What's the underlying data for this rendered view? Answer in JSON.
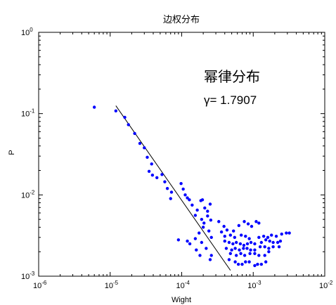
{
  "chart_data": {
    "type": "scatter",
    "title": "边权分布",
    "xlabel": "Wight",
    "ylabel": "P",
    "xscale": "log",
    "yscale": "log",
    "xlim": [
      1e-06,
      0.01
    ],
    "ylim": [
      0.001,
      1
    ],
    "x_ticks": [
      {
        "value": 1e-06,
        "base": "10",
        "exp": "-6"
      },
      {
        "value": 1e-05,
        "base": "10",
        "exp": "-5"
      },
      {
        "value": 0.0001,
        "base": "10",
        "exp": "-4"
      },
      {
        "value": 0.001,
        "base": "10",
        "exp": "-3"
      },
      {
        "value": 0.01,
        "base": "10",
        "exp": "-2"
      }
    ],
    "y_ticks": [
      {
        "value": 0.001,
        "base": "10",
        "exp": "-3"
      },
      {
        "value": 0.01,
        "base": "10",
        "exp": "-2"
      },
      {
        "value": 0.1,
        "base": "10",
        "exp": "-1"
      },
      {
        "value": 1,
        "base": "10",
        "exp": "0"
      }
    ],
    "grid": false,
    "annotation": {
      "line1": "幂律分布",
      "line2": "γ= 1.7907"
    },
    "marker_color": "#0000ff",
    "fit_line_color": "#000000",
    "fit_line": {
      "x": [
        1.2e-05,
        0.00048
      ],
      "y": [
        0.125,
        0.00118
      ]
    },
    "points": [
      [
        6e-06,
        0.12
      ],
      [
        1.2e-05,
        0.108
      ],
      [
        1.6e-05,
        0.09
      ],
      [
        1.8e-05,
        0.073
      ],
      [
        2.2e-05,
        0.057
      ],
      [
        2.6e-05,
        0.043
      ],
      [
        3e-05,
        0.038
      ],
      [
        3.3e-05,
        0.029
      ],
      [
        3.8e-05,
        0.024
      ],
      [
        3.5e-05,
        0.0195
      ],
      [
        3.9e-05,
        0.0175
      ],
      [
        4.5e-05,
        0.0163
      ],
      [
        5.3e-05,
        0.0178
      ],
      [
        5.8e-05,
        0.0145
      ],
      [
        6.3e-05,
        0.012
      ],
      [
        7.2e-05,
        0.0108
      ],
      [
        7e-05,
        0.009
      ],
      [
        9.8e-05,
        0.0138
      ],
      [
        0.000105,
        0.0118
      ],
      [
        0.000112,
        0.01
      ],
      [
        0.00012,
        0.0092
      ],
      [
        0.000128,
        0.0087
      ],
      [
        0.00014,
        0.0075
      ],
      [
        0.000165,
        0.0065
      ],
      [
        0.000185,
        0.0085
      ],
      [
        0.000195,
        0.0087
      ],
      [
        0.00021,
        0.0069
      ],
      [
        0.00023,
        0.0063
      ],
      [
        0.00025,
        0.0077
      ],
      [
        0.000155,
        0.0056
      ],
      [
        0.00019,
        0.005
      ],
      [
        0.000205,
        0.0045
      ],
      [
        0.00023,
        0.0055
      ],
      [
        0.000255,
        0.0049
      ],
      [
        0.0002,
        0.004
      ],
      [
        0.00024,
        0.0036
      ],
      [
        0.000175,
        0.0034
      ],
      [
        0.00026,
        0.003
      ],
      [
        0.00012,
        0.0027
      ],
      [
        0.000155,
        0.0029
      ],
      [
        0.00019,
        0.0026
      ],
      [
        0.00013,
        0.0025
      ],
      [
        9e-05,
        0.0028
      ],
      [
        0.00016,
        0.0021
      ],
      [
        0.00022,
        0.0022
      ],
      [
        0.00026,
        0.0018
      ],
      [
        0.00018,
        0.0018
      ],
      [
        0.00025,
        0.0016
      ],
      [
        0.00033,
        0.0047
      ],
      [
        0.00039,
        0.0041
      ],
      [
        0.00043,
        0.0037
      ],
      [
        0.00053,
        0.0036
      ],
      [
        0.00036,
        0.0035
      ],
      [
        0.0004,
        0.0031
      ],
      [
        0.00048,
        0.0032
      ],
      [
        0.00055,
        0.003
      ],
      [
        0.00063,
        0.0042
      ],
      [
        0.00075,
        0.0047
      ],
      [
        0.00085,
        0.0044
      ],
      [
        0.00095,
        0.0041
      ],
      [
        0.00068,
        0.0032
      ],
      [
        0.00078,
        0.0031
      ],
      [
        0.00088,
        0.0029
      ],
      [
        0.0011,
        0.0047
      ],
      [
        0.0012,
        0.0045
      ],
      [
        0.0004,
        0.0027
      ],
      [
        0.00046,
        0.0026
      ],
      [
        0.00052,
        0.0025
      ],
      [
        0.00058,
        0.0026
      ],
      [
        0.00066,
        0.0025
      ],
      [
        0.00074,
        0.0024
      ],
      [
        0.00083,
        0.0025
      ],
      [
        0.00093,
        0.0026
      ],
      [
        0.00105,
        0.0025
      ],
      [
        0.0012,
        0.003
      ],
      [
        0.0014,
        0.0031
      ],
      [
        0.0016,
        0.003
      ],
      [
        0.0018,
        0.0032
      ],
      [
        0.0021,
        0.0031
      ],
      [
        0.0025,
        0.0033
      ],
      [
        0.0029,
        0.0034
      ],
      [
        0.0032,
        0.0034
      ],
      [
        0.0013,
        0.0026
      ],
      [
        0.0015,
        0.0028
      ],
      [
        0.0017,
        0.0027
      ],
      [
        0.0019,
        0.0026
      ],
      [
        0.0022,
        0.0026
      ],
      [
        0.0024,
        0.0027
      ],
      [
        0.00042,
        0.0022
      ],
      [
        0.0005,
        0.0021
      ],
      [
        0.00056,
        0.0022
      ],
      [
        0.00064,
        0.0021
      ],
      [
        0.00073,
        0.0022
      ],
      [
        0.00082,
        0.0022
      ],
      [
        0.00092,
        0.0021
      ],
      [
        0.00105,
        0.0021
      ],
      [
        0.00125,
        0.0023
      ],
      [
        0.00145,
        0.0023
      ],
      [
        0.00165,
        0.0022
      ],
      [
        0.0019,
        0.0023
      ],
      [
        0.0023,
        0.0023
      ],
      [
        0.00048,
        0.0019
      ],
      [
        0.00058,
        0.0018
      ],
      [
        0.00067,
        0.0019
      ],
      [
        0.00076,
        0.0018
      ],
      [
        0.0009,
        0.0019
      ],
      [
        0.00105,
        0.0019
      ],
      [
        0.0012,
        0.0018
      ],
      [
        0.00145,
        0.0018
      ],
      [
        0.00165,
        0.002
      ],
      [
        0.00046,
        0.0016
      ],
      [
        0.00056,
        0.0015
      ],
      [
        0.00062,
        0.0014
      ],
      [
        0.0007,
        0.0014
      ],
      [
        0.00078,
        0.0015
      ],
      [
        0.00088,
        0.0015
      ],
      [
        0.00115,
        0.0014
      ],
      [
        0.0013,
        0.0014
      ],
      [
        0.0015,
        0.0015
      ],
      [
        0.00105,
        0.00135
      ]
    ]
  }
}
